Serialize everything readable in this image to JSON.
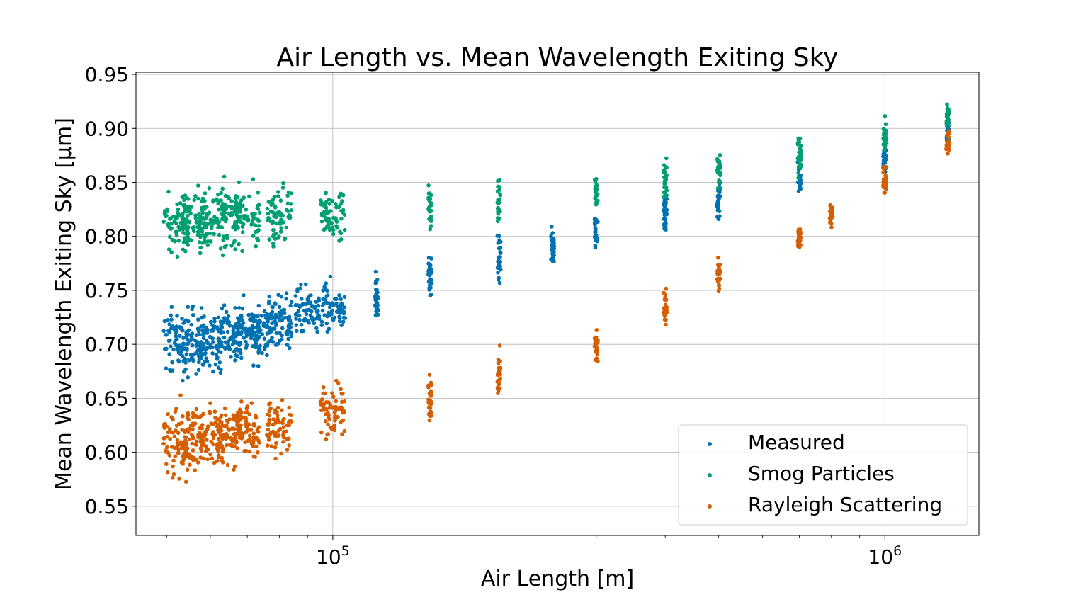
{
  "chart_data": {
    "type": "scatter",
    "title": "Air Length vs. Mean Wavelength Exiting Sky",
    "xlabel": "Air Length [m]",
    "ylabel": "Mean Wavelength Exiting Sky [μm]",
    "x_scale": "log",
    "xlim": [
      44000,
      1480000
    ],
    "ylim": [
      0.523,
      0.952
    ],
    "grid": true,
    "x_major_ticks": [
      100000,
      1000000
    ],
    "x_tick_labels": [
      {
        "base": "10",
        "exp": "5"
      },
      {
        "base": "10",
        "exp": "6"
      }
    ],
    "y_ticks": [
      0.55,
      0.6,
      0.65,
      0.7,
      0.75,
      0.8,
      0.85,
      0.9,
      0.95
    ],
    "y_tick_labels": [
      "0.55",
      "0.60",
      "0.65",
      "0.70",
      "0.75",
      "0.80",
      "0.85",
      "0.90",
      "0.95"
    ],
    "legend_position": "lower-right",
    "series": [
      {
        "name": "Measured",
        "color": "#0072B2",
        "points": [
          {
            "x": 52000,
            "y": 0.7,
            "spread": 0.03
          },
          {
            "x": 56000,
            "y": 0.702,
            "spread": 0.028
          },
          {
            "x": 60000,
            "y": 0.705,
            "spread": 0.027
          },
          {
            "x": 65000,
            "y": 0.708,
            "spread": 0.026
          },
          {
            "x": 70000,
            "y": 0.712,
            "spread": 0.025
          },
          {
            "x": 75000,
            "y": 0.716,
            "spread": 0.024
          },
          {
            "x": 80000,
            "y": 0.72,
            "spread": 0.023
          },
          {
            "x": 90000,
            "y": 0.728,
            "spread": 0.022
          },
          {
            "x": 100000,
            "y": 0.735,
            "spread": 0.022
          },
          {
            "x": 120000,
            "y": 0.745,
            "spread": 0.02
          },
          {
            "x": 150000,
            "y": 0.76,
            "spread": 0.02
          },
          {
            "x": 200000,
            "y": 0.778,
            "spread": 0.018
          },
          {
            "x": 250000,
            "y": 0.79,
            "spread": 0.017
          },
          {
            "x": 300000,
            "y": 0.805,
            "spread": 0.016
          },
          {
            "x": 400000,
            "y": 0.822,
            "spread": 0.016
          },
          {
            "x": 500000,
            "y": 0.835,
            "spread": 0.016
          },
          {
            "x": 700000,
            "y": 0.855,
            "spread": 0.015
          },
          {
            "x": 1000000,
            "y": 0.875,
            "spread": 0.015
          },
          {
            "x": 1300000,
            "y": 0.895,
            "spread": 0.012
          }
        ]
      },
      {
        "name": "Smog Particles",
        "color": "#009E73",
        "points": [
          {
            "x": 52000,
            "y": 0.812,
            "spread": 0.03
          },
          {
            "x": 56000,
            "y": 0.814,
            "spread": 0.028
          },
          {
            "x": 60000,
            "y": 0.816,
            "spread": 0.027
          },
          {
            "x": 65000,
            "y": 0.817,
            "spread": 0.026
          },
          {
            "x": 70000,
            "y": 0.818,
            "spread": 0.025
          },
          {
            "x": 80000,
            "y": 0.82,
            "spread": 0.024
          },
          {
            "x": 100000,
            "y": 0.822,
            "spread": 0.022
          },
          {
            "x": 150000,
            "y": 0.827,
            "spread": 0.021
          },
          {
            "x": 200000,
            "y": 0.832,
            "spread": 0.02
          },
          {
            "x": 300000,
            "y": 0.84,
            "spread": 0.018
          },
          {
            "x": 400000,
            "y": 0.85,
            "spread": 0.018
          },
          {
            "x": 500000,
            "y": 0.86,
            "spread": 0.017
          },
          {
            "x": 700000,
            "y": 0.875,
            "spread": 0.016
          },
          {
            "x": 1000000,
            "y": 0.893,
            "spread": 0.013
          },
          {
            "x": 1300000,
            "y": 0.91,
            "spread": 0.011
          }
        ]
      },
      {
        "name": "Rayleigh Scattering",
        "color": "#D55E00",
        "points": [
          {
            "x": 52000,
            "y": 0.61,
            "spread": 0.03
          },
          {
            "x": 56000,
            "y": 0.612,
            "spread": 0.028
          },
          {
            "x": 60000,
            "y": 0.615,
            "spread": 0.027
          },
          {
            "x": 65000,
            "y": 0.617,
            "spread": 0.026
          },
          {
            "x": 70000,
            "y": 0.62,
            "spread": 0.025
          },
          {
            "x": 80000,
            "y": 0.626,
            "spread": 0.024
          },
          {
            "x": 100000,
            "y": 0.636,
            "spread": 0.022
          },
          {
            "x": 150000,
            "y": 0.652,
            "spread": 0.021
          },
          {
            "x": 200000,
            "y": 0.67,
            "spread": 0.02
          },
          {
            "x": 300000,
            "y": 0.7,
            "spread": 0.018
          },
          {
            "x": 400000,
            "y": 0.735,
            "spread": 0.016
          },
          {
            "x": 500000,
            "y": 0.765,
            "spread": 0.014
          },
          {
            "x": 700000,
            "y": 0.8,
            "spread": 0.012
          },
          {
            "x": 800000,
            "y": 0.82,
            "spread": 0.012
          },
          {
            "x": 1000000,
            "y": 0.85,
            "spread": 0.013
          },
          {
            "x": 1300000,
            "y": 0.885,
            "spread": 0.011
          }
        ]
      }
    ]
  }
}
